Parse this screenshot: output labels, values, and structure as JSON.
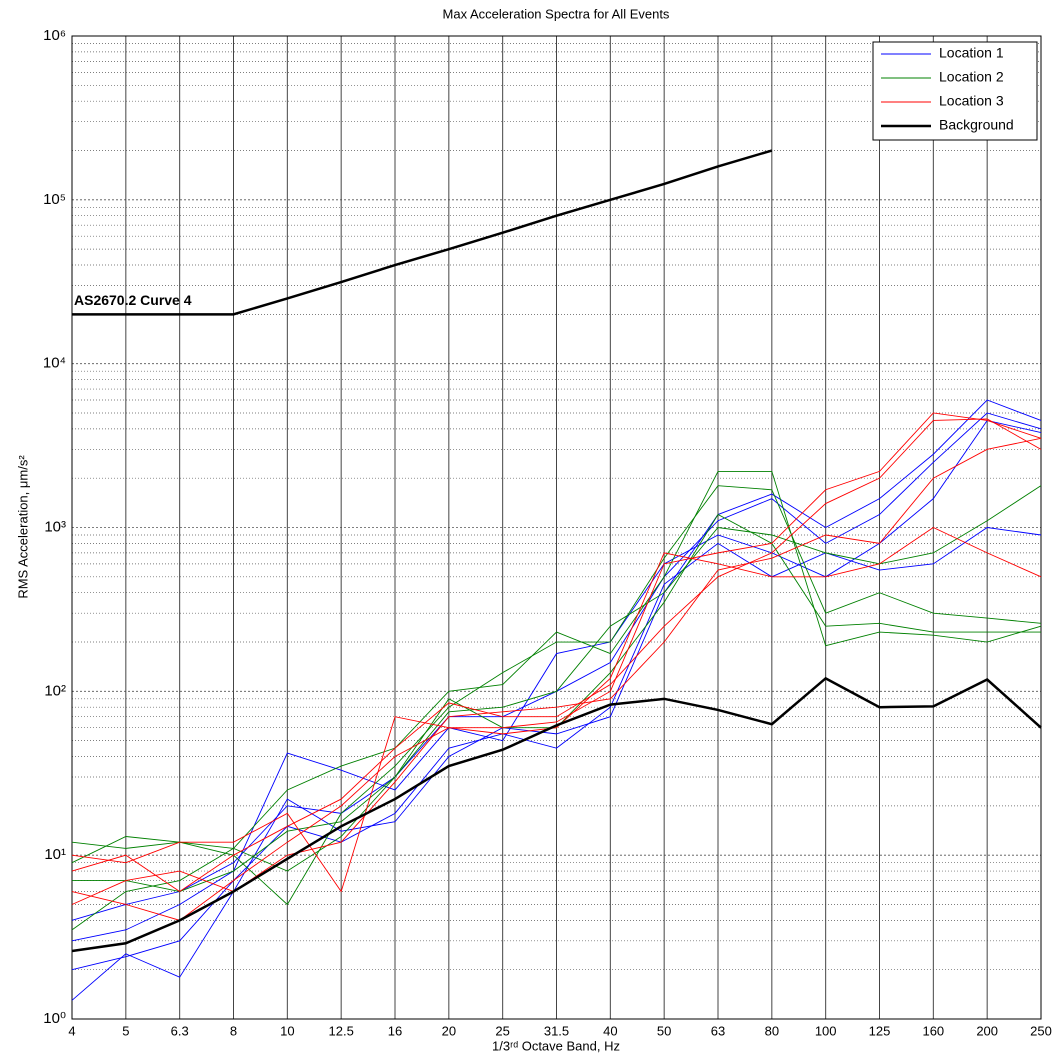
{
  "chart_data": {
    "type": "line",
    "title": "Max Acceleration Spectra for All Events",
    "x_label": "1/3ʳᵈ Octave Band, Hz",
    "y_label": "RMS Acceleration, μm/s²",
    "categories": [
      "4",
      "5",
      "6.3",
      "8",
      "10",
      "12.5",
      "16",
      "20",
      "25",
      "31.5",
      "40",
      "50",
      "63",
      "80",
      "100",
      "125",
      "160",
      "200",
      "250"
    ],
    "log_y": true,
    "ylim": [
      1,
      1000000
    ],
    "yticks": [
      {
        "value": 1,
        "label": "10⁰"
      },
      {
        "value": 10,
        "label": "10¹"
      },
      {
        "value": 100,
        "label": "10²"
      },
      {
        "value": 1000,
        "label": "10³"
      },
      {
        "value": 10000,
        "label": "10⁴"
      },
      {
        "value": 100000,
        "label": "10⁵"
      },
      {
        "value": 1000000,
        "label": "10⁶"
      }
    ],
    "grid": true,
    "minor_grid": true,
    "legend": "upper right",
    "series": [
      {
        "name": "Location 1",
        "color": "#0000ff",
        "lines": [
          [
            1.3,
            2.5,
            1.8,
            6,
            22,
            14,
            16,
            40,
            60,
            55,
            70,
            400,
            1200,
            1600,
            1000,
            1500,
            2800,
            6000,
            4500
          ],
          [
            3,
            3.5,
            5,
            8,
            42,
            33,
            25,
            60,
            50,
            170,
            200,
            600,
            900,
            700,
            500,
            800,
            1500,
            4500,
            3800
          ],
          [
            2,
            2.4,
            3,
            7,
            15,
            12,
            18,
            45,
            55,
            45,
            80,
            450,
            800,
            500,
            700,
            550,
            600,
            1000,
            900
          ],
          [
            4,
            5,
            6,
            9,
            20,
            18,
            30,
            70,
            70,
            100,
            150,
            500,
            1100,
            1500,
            800,
            1200,
            2500,
            5000,
            4000
          ]
        ]
      },
      {
        "name": "Location 2",
        "color": "#008000",
        "lines": [
          [
            12,
            11,
            12,
            11,
            25,
            35,
            45,
            100,
            110,
            230,
            170,
            500,
            2200,
            2200,
            190,
            230,
            220,
            200,
            250
          ],
          [
            9,
            13,
            12,
            10,
            5,
            18,
            35,
            80,
            130,
            200,
            200,
            650,
            1800,
            1700,
            300,
            400,
            300,
            280,
            260
          ],
          [
            3.5,
            6,
            7,
            11,
            8,
            13,
            30,
            75,
            80,
            100,
            250,
            400,
            1000,
            900,
            700,
            600,
            700,
            1100,
            1800
          ],
          [
            7,
            7,
            6,
            8,
            14,
            16,
            30,
            90,
            60,
            60,
            130,
            350,
            1200,
            800,
            250,
            260,
            230,
            230,
            230
          ]
        ]
      },
      {
        "name": "Location 3",
        "color": "#ff0000",
        "lines": [
          [
            10,
            9,
            12,
            12,
            18,
            6,
            70,
            60,
            60,
            65,
            100,
            600,
            700,
            800,
            1700,
            2200,
            5000,
            4500,
            3500
          ],
          [
            8,
            10,
            6,
            10,
            15,
            22,
            45,
            85,
            70,
            70,
            110,
            250,
            500,
            700,
            1400,
            2000,
            4500,
            4600,
            3000
          ],
          [
            6,
            5,
            4,
            7,
            12,
            20,
            40,
            60,
            55,
            60,
            120,
            700,
            600,
            500,
            500,
            600,
            1000,
            700,
            500
          ],
          [
            5,
            7,
            8,
            6,
            10,
            12,
            28,
            70,
            75,
            80,
            90,
            200,
            550,
            650,
            900,
            800,
            2000,
            3000,
            3500
          ]
        ]
      },
      {
        "name": "Background",
        "color": "#000000",
        "values": [
          2.6,
          2.9,
          4,
          6,
          9.5,
          15,
          22,
          35,
          44,
          62,
          83,
          90,
          77,
          63,
          120,
          80,
          81,
          118,
          60
        ]
      }
    ],
    "reference": {
      "label": "AS2670.2 Curve 4",
      "color": "#000000",
      "values": [
        20000,
        20000,
        20000,
        20000,
        25000,
        31500,
        40000,
        50000,
        63000,
        80000,
        100000,
        125000,
        160000,
        200000,
        null,
        null,
        null,
        null,
        null
      ]
    }
  }
}
